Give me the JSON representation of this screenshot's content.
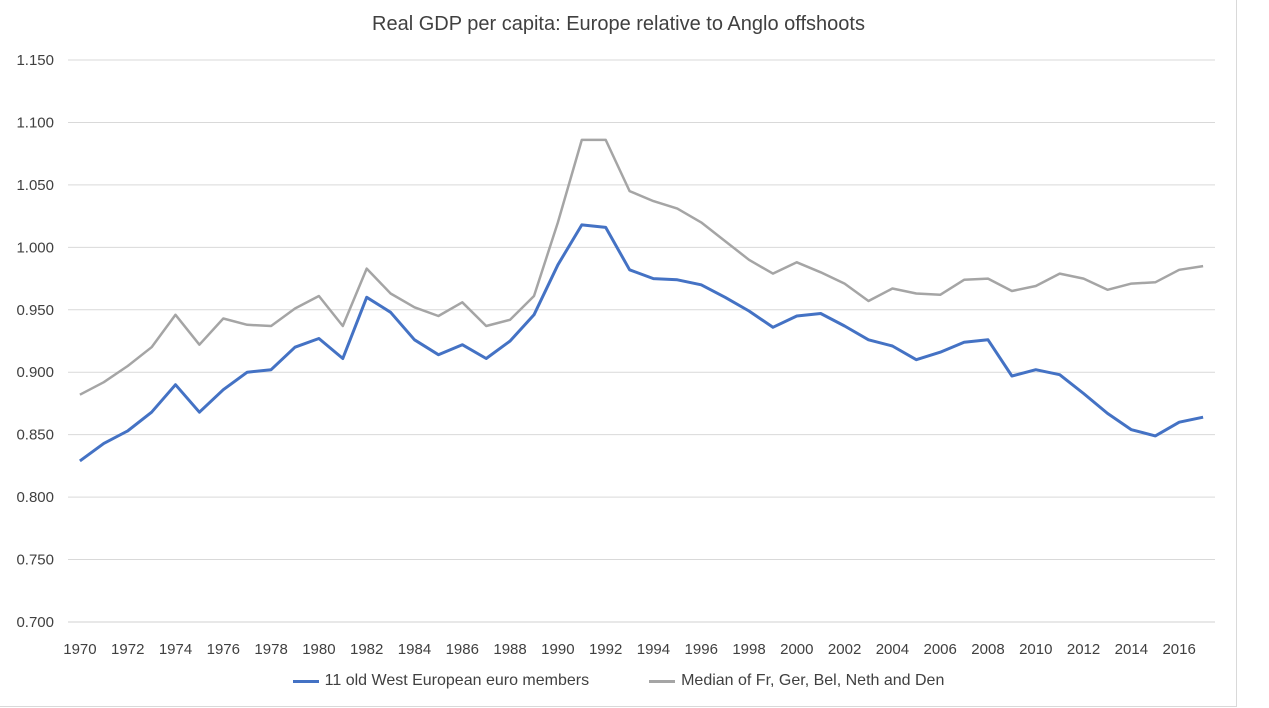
{
  "chart_data": {
    "type": "line",
    "title": "Real GDP per capita: Europe relative to Anglo offshoots",
    "xlabel": "",
    "ylabel": "",
    "ylim": [
      0.7,
      1.15
    ],
    "y_ticks": [
      "0.700",
      "0.750",
      "0.800",
      "0.850",
      "0.900",
      "0.950",
      "1.000",
      "1.050",
      "1.100",
      "1.150"
    ],
    "x_tick_labels": [
      "1970",
      "1972",
      "1974",
      "1976",
      "1978",
      "1980",
      "1982",
      "1984",
      "1986",
      "1988",
      "1990",
      "1992",
      "1994",
      "1996",
      "1998",
      "2000",
      "2002",
      "2004",
      "2006",
      "2008",
      "2010",
      "2012",
      "2014",
      "2016"
    ],
    "grid": "horizontal",
    "legend": "bottom",
    "x": [
      1970,
      1971,
      1972,
      1973,
      1974,
      1975,
      1976,
      1977,
      1978,
      1979,
      1980,
      1981,
      1982,
      1983,
      1984,
      1985,
      1986,
      1987,
      1988,
      1989,
      1990,
      1991,
      1992,
      1993,
      1994,
      1995,
      1996,
      1997,
      1998,
      1999,
      2000,
      2001,
      2002,
      2003,
      2004,
      2005,
      2006,
      2007,
      2008,
      2009,
      2010,
      2011,
      2012,
      2013,
      2014,
      2015,
      2016,
      2017
    ],
    "series": [
      {
        "name": "11 old West European euro members",
        "color": "#4472c4",
        "values": [
          0.829,
          0.843,
          0.853,
          0.868,
          0.89,
          0.868,
          0.886,
          0.9,
          0.902,
          0.92,
          0.927,
          0.911,
          0.96,
          0.948,
          0.926,
          0.914,
          0.922,
          0.911,
          0.925,
          0.946,
          0.986,
          1.018,
          1.016,
          0.982,
          0.975,
          0.974,
          0.97,
          0.96,
          0.949,
          0.936,
          0.945,
          0.947,
          0.937,
          0.926,
          0.921,
          0.91,
          0.916,
          0.924,
          0.926,
          0.897,
          0.902,
          0.898,
          0.883,
          0.867,
          0.854,
          0.849,
          0.86,
          0.864
        ]
      },
      {
        "name": "Median of Fr, Ger, Bel, Neth and Den",
        "color": "#a5a5a5",
        "values": [
          0.882,
          0.892,
          0.905,
          0.92,
          0.946,
          0.922,
          0.943,
          0.938,
          0.937,
          0.951,
          0.961,
          0.937,
          0.983,
          0.963,
          0.952,
          0.945,
          0.956,
          0.937,
          0.942,
          0.961,
          1.02,
          1.086,
          1.086,
          1.045,
          1.037,
          1.031,
          1.02,
          1.005,
          0.99,
          0.979,
          0.988,
          0.98,
          0.971,
          0.957,
          0.967,
          0.963,
          0.962,
          0.974,
          0.975,
          0.965,
          0.969,
          0.979,
          0.975,
          0.966,
          0.971,
          0.972,
          0.982,
          0.985
        ]
      }
    ]
  }
}
